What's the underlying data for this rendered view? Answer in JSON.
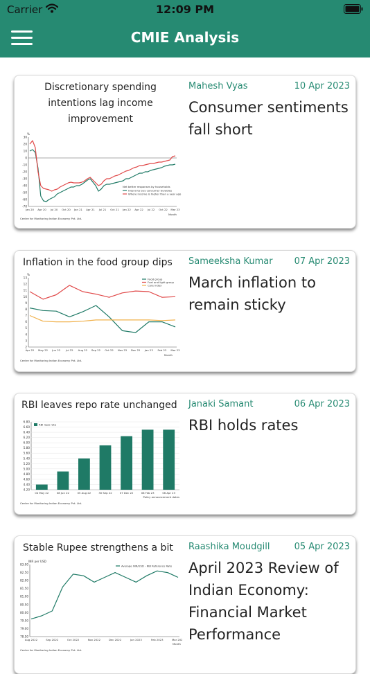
{
  "status": {
    "carrier": "Carrier",
    "time": "12:09 PM"
  },
  "header": {
    "title": "CMIE Analysis"
  },
  "articles": [
    {
      "author": "Mahesh Vyas",
      "date": "10 Apr 2023",
      "headline": "Consumer sentiments fall short",
      "chart_title": "Discretionary spending intentions lag income improvement",
      "chart_source": "Centre for Monitoring Indian Economy Pvt. Ltd."
    },
    {
      "author": "Sameeksha Kumar",
      "date": "07 Apr 2023",
      "headline": "March inflation to remain sticky",
      "chart_title": "Inflation in the food group dips",
      "chart_source": "Centre for Monitoring Indian Economy Pvt. Ltd."
    },
    {
      "author": "Janaki Samant",
      "date": "06 Apr 2023",
      "headline": "RBI holds rates",
      "chart_title": "RBI leaves repo rate unchanged",
      "chart_source": "Centre for Monitoring Indian Economy Pvt. Ltd."
    },
    {
      "author": "Raashika Moudgill",
      "date": "05 Apr 2023",
      "headline": "April 2023 Review of Indian Economy: Financial Market Performance",
      "chart_title": "Stable Rupee strengthens a bit",
      "chart_source": "Centre for Monitoring Indian Economy Pvt. Ltd."
    }
  ],
  "colors": {
    "brand": "#268a72",
    "green_series": "#1f7a66",
    "red_series": "#e04848",
    "orange_series": "#f0b04a"
  },
  "chart_data": [
    {
      "type": "line",
      "ylabel": "%",
      "xlabel": "Month",
      "ylim": [
        -70,
        30
      ],
      "y_ticks": [
        30,
        20,
        10,
        0,
        -10,
        -20,
        -30,
        -40,
        -50,
        -60,
        -70
      ],
      "x_ticks": [
        "Jan 20",
        "Apr 20",
        "Jul 20",
        "Oct 20",
        "Jan 21",
        "Apr 21",
        "Jul 21",
        "Oct 21",
        "Jan 22",
        "Apr 22",
        "Jul 22",
        "Oct 22",
        "Mar 23"
      ],
      "legend_title": "Net better responses by households",
      "series": [
        {
          "name": "Intend to buy consumer durables",
          "color": "#1f7a66",
          "values": [
            10,
            12,
            8,
            -15,
            -55,
            -62,
            -63,
            -60,
            -58,
            -56,
            -52,
            -50,
            -48,
            -46,
            -44,
            -42,
            -42,
            -40,
            -40,
            -38,
            -35,
            -32,
            -30,
            -35,
            -40,
            -48,
            -45,
            -40,
            -38,
            -38,
            -37,
            -36,
            -35,
            -34,
            -33,
            -30,
            -30,
            -28,
            -26,
            -24,
            -22,
            -22,
            -20,
            -20,
            -18,
            -17,
            -16,
            -15,
            -14,
            -12,
            -11,
            -10,
            -10,
            -9
          ]
        },
        {
          "name": "Where income is higher than a year ago",
          "color": "#e04848",
          "values": [
            20,
            25,
            15,
            -20,
            -40,
            -44,
            -45,
            -46,
            -48,
            -46,
            -45,
            -42,
            -40,
            -38,
            -36,
            -35,
            -36,
            -36,
            -36,
            -35,
            -33,
            -30,
            -28,
            -32,
            -36,
            -40,
            -38,
            -33,
            -30,
            -30,
            -28,
            -26,
            -25,
            -23,
            -21,
            -19,
            -18,
            -16,
            -14,
            -13,
            -11,
            -11,
            -10,
            -9,
            -8,
            -8,
            -7,
            -6,
            -6,
            -5,
            -4,
            -3,
            2,
            3
          ]
        }
      ]
    },
    {
      "type": "line",
      "ylabel": "%",
      "xlabel": "Month",
      "ylim": [
        2,
        13
      ],
      "y_ticks": [
        13,
        12,
        11,
        10,
        9,
        8,
        7,
        6,
        5,
        4,
        3,
        2
      ],
      "x_ticks": [
        "Apr 22",
        "May 22",
        "Jun 22",
        "Jul 22",
        "Aug 22",
        "Sep 22",
        "Oct 22",
        "Nov 22",
        "Dec 22",
        "Jan 23",
        "Feb 23",
        "Mar 23"
      ],
      "series": [
        {
          "name": "Food group",
          "color": "#1f7a66",
          "values": [
            8.2,
            7.8,
            7.7,
            6.8,
            7.6,
            8.6,
            6.8,
            4.6,
            4.3,
            6.0,
            6.0,
            5.2
          ]
        },
        {
          "name": "Fuel and light group",
          "color": "#e04848",
          "values": [
            10.8,
            9.6,
            10.3,
            11.8,
            10.8,
            10.4,
            9.9,
            10.6,
            10.9,
            10.8,
            9.9,
            10.0
          ]
        },
        {
          "name": "Core index",
          "color": "#f0b04a",
          "values": [
            7.0,
            6.1,
            6.0,
            6.0,
            6.1,
            6.3,
            6.3,
            6.3,
            6.3,
            6.3,
            6.2,
            6.3
          ]
        }
      ]
    },
    {
      "type": "bar",
      "xlabel": "Policy announcement dates",
      "ylim": [
        4.2,
        6.8
      ],
      "y_ticks": [
        6.8,
        6.6,
        6.4,
        6.2,
        6.0,
        5.8,
        5.6,
        5.4,
        5.2,
        5.0,
        4.8,
        4.6,
        4.4,
        4.2
      ],
      "categories": [
        "04 May 22",
        "08 Jun 22",
        "05 Aug 22",
        "30 Sep 22",
        "07 Dec 22",
        "08 Feb 23",
        "06 Apr 23"
      ],
      "series": [
        {
          "name": "RBI repo rate",
          "color": "#1f7a66",
          "values": [
            4.4,
            4.9,
            5.4,
            5.9,
            6.25,
            6.5,
            6.5
          ]
        }
      ]
    },
    {
      "type": "line",
      "ylabel": "INR per USD",
      "xlabel": "Month",
      "ylim": [
        78.5,
        83.0
      ],
      "y_ticks": [
        83.0,
        82.5,
        82.0,
        81.5,
        81.0,
        80.5,
        80.0,
        79.5,
        79.0,
        78.5
      ],
      "x_ticks": [
        "Aug 2022",
        "Sep 2022",
        "Oct 2022",
        "Nov 2022",
        "Dec 2022",
        "Jan 2023",
        "Feb 2023",
        "Mar 2023"
      ],
      "series": [
        {
          "name": "Average INR/USD - RBI Reference Rate",
          "color": "#1f7a66",
          "values": [
            79.6,
            79.8,
            80.1,
            81.6,
            82.4,
            82.3,
            81.9,
            82.2,
            82.5,
            82.2,
            81.9,
            82.3,
            82.6,
            82.5,
            82.2
          ]
        }
      ]
    }
  ]
}
